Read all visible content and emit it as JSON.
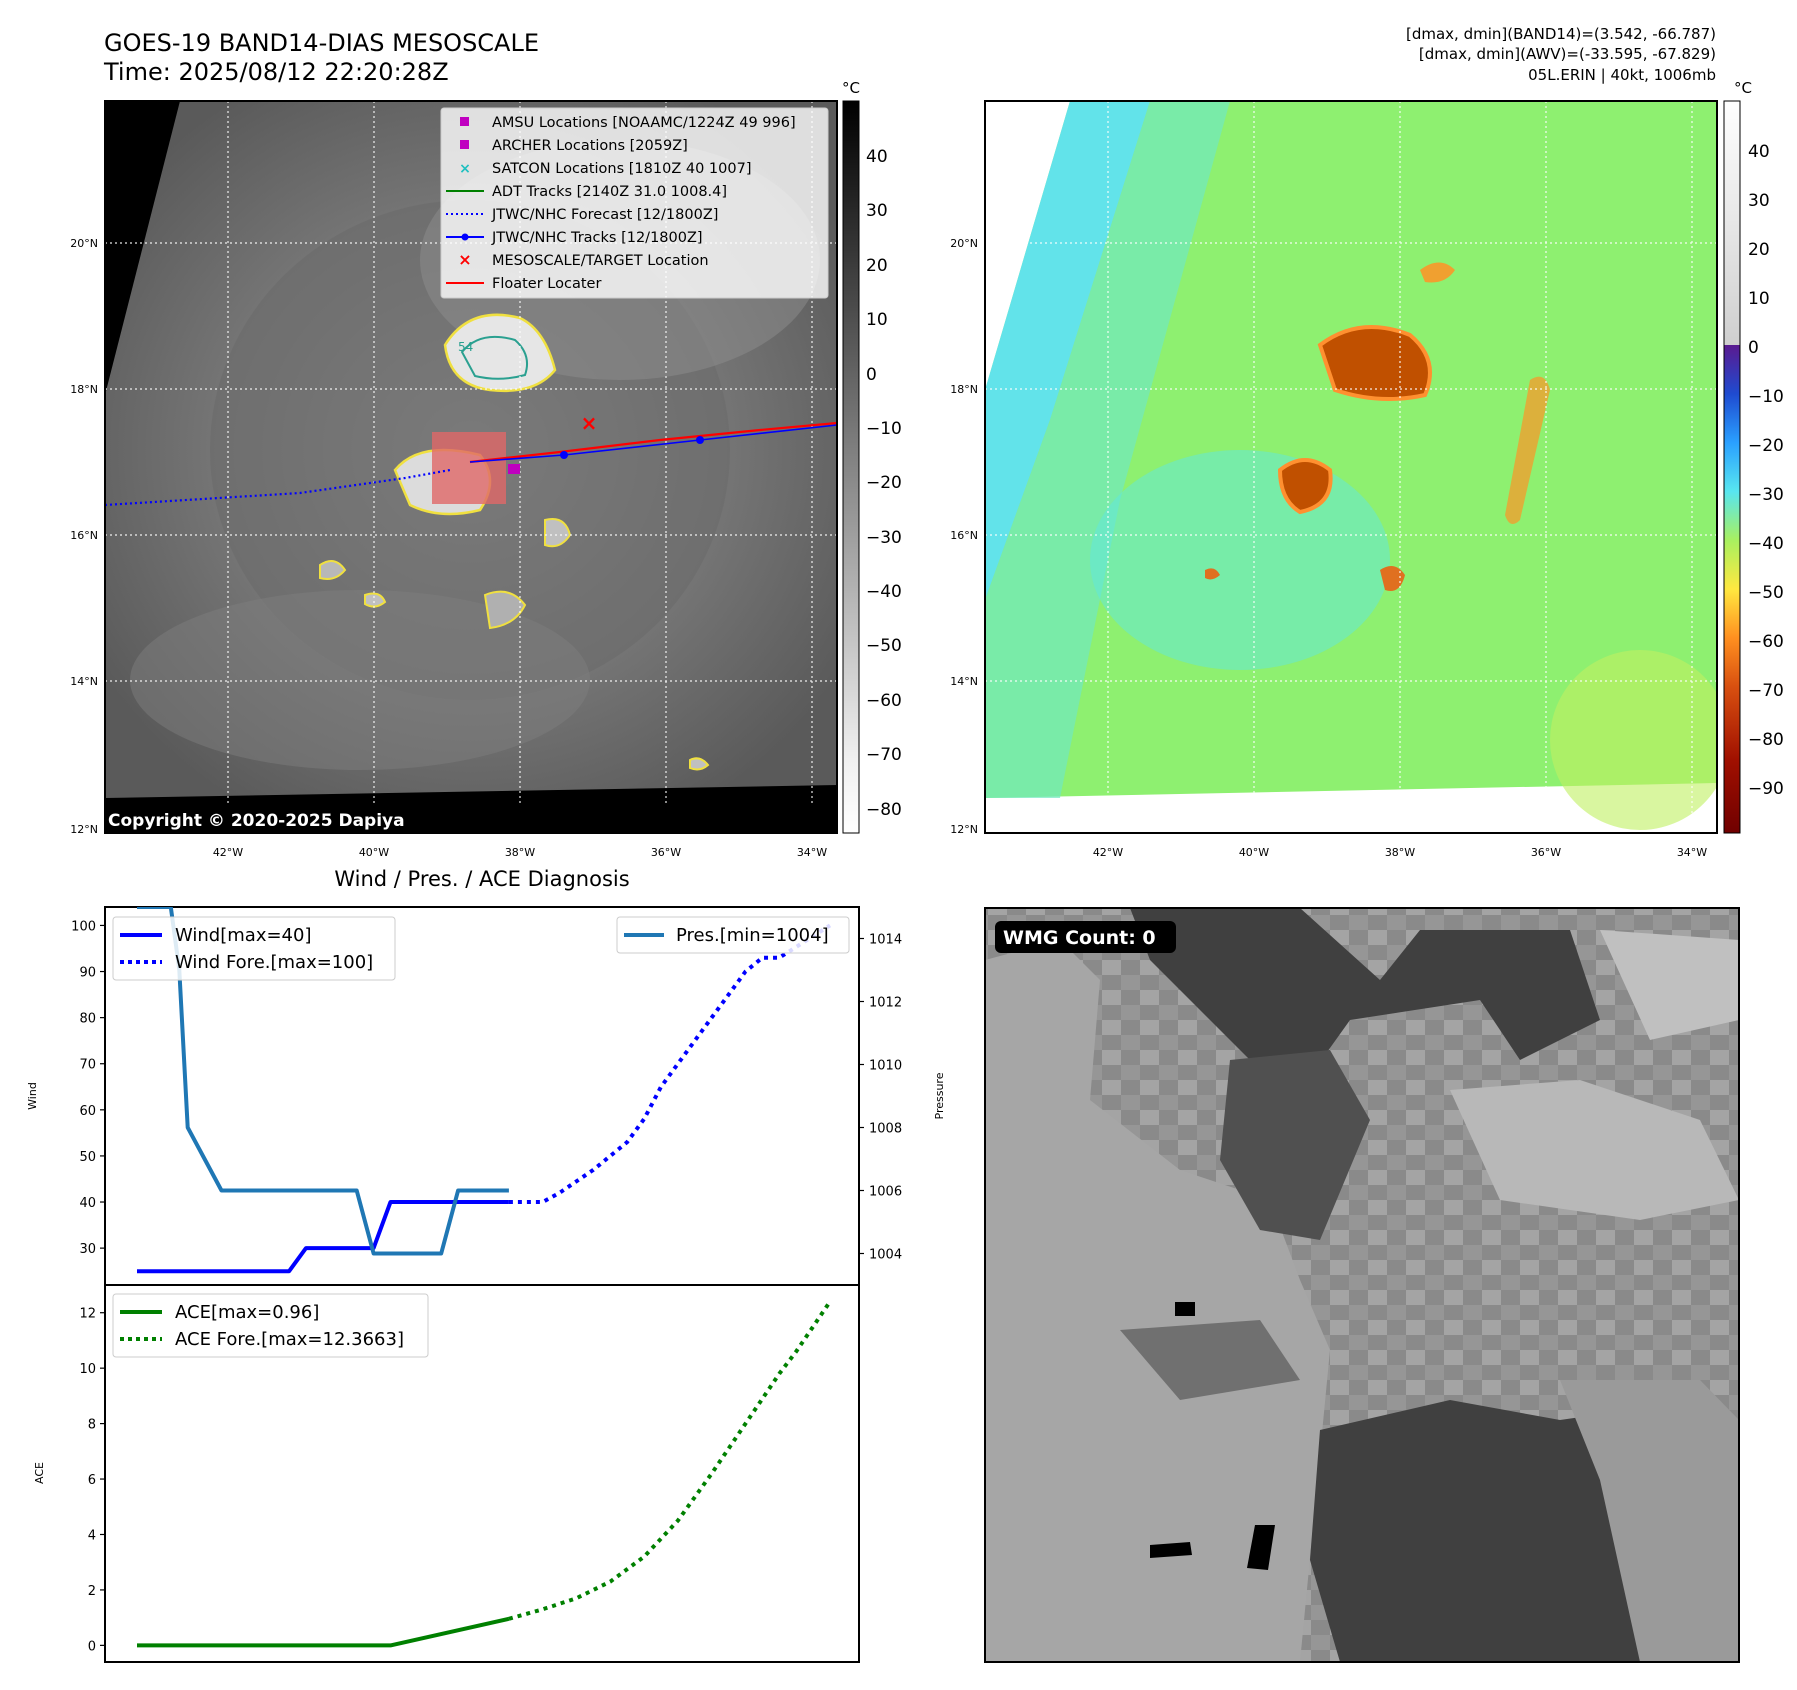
{
  "header": {
    "title_line1": "GOES-19 BAND14-DIAS MESOSCALE",
    "title_line2": "Time: 2025/08/12 22:20:28Z",
    "right_line1": "[dmax, dmin](BAND14)=(3.542, -66.787)",
    "right_line2": "[dmax, dmin](AWV)=(-33.595, -67.829)",
    "right_line3": "05L.ERIN | 40kt, 1006mb"
  },
  "map_axes": {
    "lat_labels": [
      "20°N",
      "18°N",
      "16°N",
      "14°N",
      "12°N"
    ],
    "lon_labels": [
      "42°W",
      "40°W",
      "38°W",
      "36°W",
      "34°W"
    ]
  },
  "ir_panel": {
    "copyright": "Copyright © 2020-2025 Dapiya",
    "colorbar_unit": "°C",
    "colorbar_ticks": [
      "40",
      "30",
      "20",
      "10",
      "0",
      "−10",
      "−20",
      "−30",
      "−40",
      "−50",
      "−60",
      "−70",
      "−80"
    ],
    "legend": [
      {
        "label": "AMSU Locations [NOAAMC/1224Z 49 996]",
        "marker": "square",
        "color": "#c000c0"
      },
      {
        "label": "ARCHER Locations [2059Z]",
        "marker": "square",
        "color": "#c000c0"
      },
      {
        "label": "SATCON Locations [1810Z 40 1007]",
        "marker": "x",
        "color": "#20c0c0"
      },
      {
        "label": "ADT Tracks [2140Z 31.0 1008.4]",
        "marker": "line",
        "color": "#008000"
      },
      {
        "label": "JTWC/NHC Forecast [12/1800Z]",
        "marker": "dotted",
        "color": "#0000ff"
      },
      {
        "label": "JTWC/NHC Tracks [12/1800Z]",
        "marker": "line-dot",
        "color": "#0000ff"
      },
      {
        "label": "MESOSCALE/TARGET Location",
        "marker": "x",
        "color": "#ff0000"
      },
      {
        "label": "Floater Locater",
        "marker": "line",
        "color": "#ff0000"
      }
    ],
    "contour_label": "54"
  },
  "awv_panel": {
    "colorbar_unit": "°C",
    "colorbar_ticks": [
      "40",
      "30",
      "20",
      "10",
      "0",
      "−10",
      "−20",
      "−30",
      "−40",
      "−50",
      "−60",
      "−70",
      "−80",
      "−90"
    ]
  },
  "wmg_panel": {
    "badge": "WMG Count: 0"
  },
  "chart_data": [
    {
      "type": "line",
      "title": "Wind / Pres. / ACE Diagnosis",
      "ylabel": "Wind",
      "ylabel_right": "Pressure",
      "ylim": [
        22,
        104
      ],
      "ylim_right": [
        1003,
        1015
      ],
      "yticks": [
        30,
        40,
        50,
        60,
        70,
        80,
        90,
        100
      ],
      "yticks_right": [
        1004,
        1006,
        1008,
        1010,
        1012,
        1014
      ],
      "series": [
        {
          "name": "Wind[max=40]",
          "color": "#0000ff",
          "style": "solid",
          "axis": "left",
          "x": [
            0,
            8,
            9,
            10,
            13,
            14,
            15,
            22
          ],
          "values": [
            25,
            25,
            25,
            30,
            30,
            30,
            40,
            40
          ]
        },
        {
          "name": "Wind Fore.[max=100]",
          "color": "#0000ff",
          "style": "dotted",
          "axis": "left",
          "x": [
            22,
            24,
            25,
            27,
            28,
            29,
            30,
            31,
            33,
            34,
            35,
            36,
            37,
            38,
            41
          ],
          "values": [
            40,
            40,
            42,
            47,
            50,
            53,
            58,
            65,
            75,
            80,
            85,
            90,
            93,
            93,
            100
          ]
        },
        {
          "name": "Pres.[min=1004]",
          "color": "#1f77b4",
          "style": "solid",
          "axis": "right",
          "x": [
            0,
            1,
            2,
            2.5,
            3,
            4,
            5,
            7,
            13,
            14,
            15,
            17,
            18,
            19,
            20,
            21,
            22
          ],
          "values": [
            1015,
            1015,
            1015,
            1013,
            1008,
            1007,
            1006,
            1006,
            1006,
            1004,
            1004,
            1004,
            1004,
            1006,
            1006,
            1006,
            1006
          ]
        }
      ]
    },
    {
      "type": "line",
      "ylabel": "ACE",
      "ylim": [
        -0.6,
        13
      ],
      "yticks": [
        0,
        2,
        4,
        6,
        8,
        10,
        12
      ],
      "series": [
        {
          "name": "ACE[max=0.96]",
          "color": "#008000",
          "style": "solid",
          "x": [
            0,
            15,
            22
          ],
          "values": [
            0,
            0,
            0.96
          ]
        },
        {
          "name": "ACE Fore.[max=12.3663]",
          "color": "#008000",
          "style": "dotted",
          "x": [
            22,
            24,
            26,
            28,
            30,
            32,
            34,
            35,
            36,
            37,
            38,
            39,
            40,
            41
          ],
          "values": [
            0.96,
            1.3,
            1.7,
            2.3,
            3.2,
            4.5,
            6.2,
            7.1,
            8.0,
            8.9,
            9.8,
            10.6,
            11.5,
            12.4
          ]
        }
      ]
    }
  ]
}
